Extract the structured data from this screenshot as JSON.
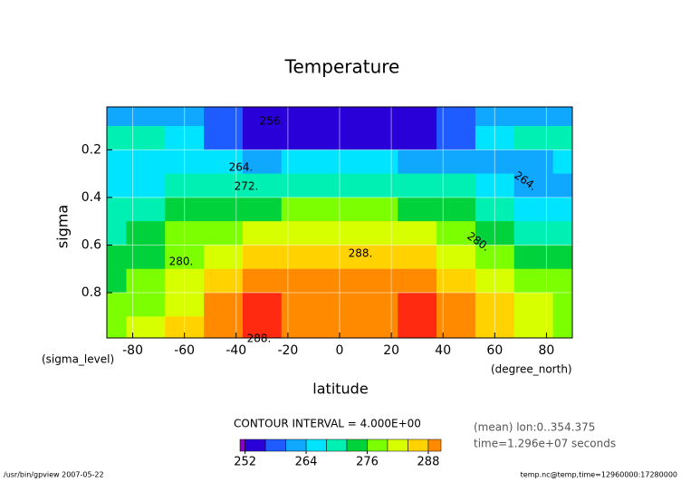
{
  "chart_data": {
    "type": "contour",
    "title": "Temperature",
    "x_label": "latitude",
    "y_label": "sigma",
    "x_unit": "(degree_north)",
    "y_unit": "(sigma_level)",
    "interval_note": "CONTOUR INTERVAL = 4.000E+00",
    "info": [
      "(mean) lon:0..354.375",
      "time=1.296e+07 seconds"
    ],
    "footer_left": "/usr/bin/gpview  2007-05-22",
    "footer_right": "temp.nc@temp,time=12960000:17280000",
    "x": [
      -90,
      -75,
      -60,
      -45,
      -30,
      -15,
      0,
      15,
      30,
      45,
      60,
      75,
      90
    ],
    "y": [
      0.05,
      0.15,
      0.25,
      0.35,
      0.45,
      0.55,
      0.65,
      0.75,
      0.85,
      0.95
    ],
    "z": [
      [
        262,
        262,
        260,
        258,
        254,
        254,
        254,
        254,
        254,
        256,
        260,
        262,
        262
      ],
      [
        268,
        270,
        264,
        258,
        252,
        254,
        254,
        254,
        252,
        258,
        264,
        268,
        268
      ],
      [
        264,
        264,
        264,
        264,
        262,
        264,
        264,
        264,
        262,
        262,
        262,
        262,
        264
      ],
      [
        266,
        266,
        268,
        270,
        270,
        271,
        271,
        271,
        270,
        268,
        264,
        262,
        262
      ],
      [
        268,
        270,
        272,
        274,
        275,
        276,
        276,
        276,
        275,
        274,
        270,
        266,
        266
      ],
      [
        270,
        272,
        276,
        279,
        281,
        281,
        281,
        281,
        280,
        278,
        274,
        270,
        270
      ],
      [
        272,
        274,
        279,
        283,
        286,
        287,
        287,
        287,
        286,
        283,
        278,
        274,
        274
      ],
      [
        274,
        276,
        281,
        285,
        289,
        290,
        290,
        290,
        289,
        286,
        281,
        277,
        276
      ],
      [
        276,
        278,
        283,
        288,
        292,
        290,
        290,
        290,
        292,
        290,
        284,
        280,
        278
      ],
      [
        278,
        280,
        284,
        289,
        292,
        290,
        290,
        290,
        293,
        290,
        285,
        280,
        278
      ]
    ],
    "xlim": [
      -90,
      90
    ],
    "ylim": [
      0.99,
      0.02
    ],
    "xticks": [
      -80,
      -60,
      -40,
      -20,
      0,
      20,
      40,
      60,
      80
    ],
    "yticks": [
      0.2,
      0.4,
      0.6,
      0.8
    ],
    "grid": true,
    "levels": [
      252,
      256,
      260,
      264,
      268,
      272,
      276,
      280,
      284,
      288,
      292
    ],
    "colors": [
      "#8a00c8",
      "#2a00d8",
      "#1f5cff",
      "#10a8ff",
      "#00e4ff",
      "#00f0b4",
      "#00d23c",
      "#7cff00",
      "#d8ff00",
      "#ffd200",
      "#ff8a00",
      "#ff2a10"
    ],
    "colorbar_lim": [
      251,
      290.5
    ],
    "colorbar_ticks": [
      252,
      264,
      276,
      288
    ],
    "contour_labels": [
      {
        "value": 256,
        "label": "256."
      },
      {
        "value": 264,
        "label": "264."
      },
      {
        "value": 272,
        "label": "272."
      },
      {
        "value": 280,
        "label": "280."
      },
      {
        "value": 288,
        "label": "288."
      },
      {
        "value": 264,
        "label": "264."
      },
      {
        "value": 280,
        "label": "280."
      },
      {
        "value": 288,
        "label": "288."
      }
    ]
  }
}
